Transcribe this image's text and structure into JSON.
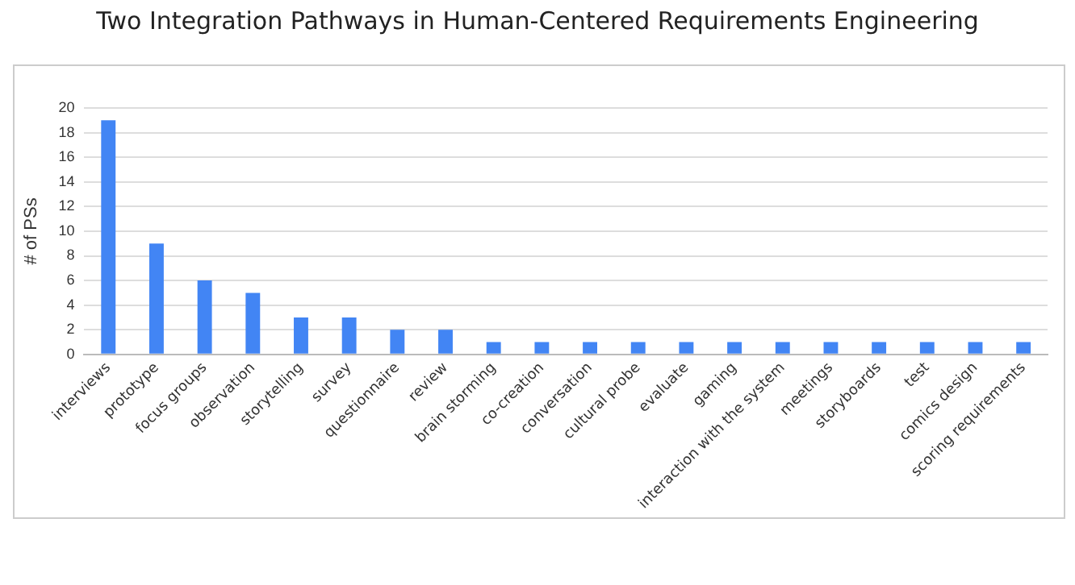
{
  "chart_data": {
    "type": "bar",
    "title": "Two Integration Pathways in Human-Centered Requirements Engineering",
    "ylabel": "# of PSs",
    "categories": [
      "interviews",
      "prototype",
      "focus groups",
      "observation",
      "storytelling",
      "survey",
      "questionnaire",
      "review",
      "brain storming",
      "co-creation",
      "conversation",
      "cultural probe",
      "evaluate",
      "gaming",
      "interaction with the system",
      "meetings",
      "storyboards",
      "test",
      "comics design",
      "scoring requirements"
    ],
    "values": [
      19,
      9,
      6,
      5,
      3,
      3,
      2,
      2,
      1,
      1,
      1,
      1,
      1,
      1,
      1,
      1,
      1,
      1,
      1,
      1
    ],
    "color": "#4285f4",
    "ylim": [
      0,
      20
    ],
    "yticks": [
      0,
      2,
      4,
      6,
      8,
      10,
      12,
      14,
      16,
      18,
      20
    ],
    "grid": "y",
    "legend": false
  }
}
